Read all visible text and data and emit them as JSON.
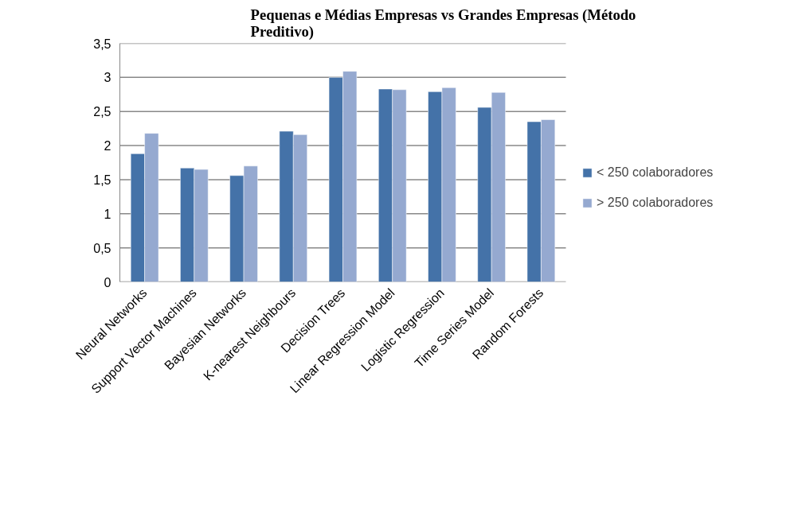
{
  "chart_data": {
    "type": "bar",
    "title": "Pequenas e Médias Empresas vs Grandes Empresas (Método Preditivo)",
    "categories": [
      "Neural Networks",
      "Support Vector Machines",
      "Bayesian Networks",
      "K-nearest Neighbours",
      "Decision Trees",
      "Linear Regression Model",
      "Logistic Regression",
      "Time Series Model",
      "Random Forests"
    ],
    "series": [
      {
        "name": "< 250 colaboradores",
        "color": "#4472a8",
        "values": [
          1.88,
          1.67,
          1.56,
          2.21,
          3.0,
          2.83,
          2.79,
          2.56,
          2.35
        ]
      },
      {
        "name": "> 250 colaboradores",
        "color": "#95a9d0",
        "values": [
          2.18,
          1.65,
          1.7,
          2.16,
          3.09,
          2.82,
          2.85,
          2.78,
          2.38
        ]
      }
    ],
    "ylim": [
      0,
      3.5
    ],
    "yticks": [
      0,
      {
        "value": 0.5,
        "label": "0,5"
      },
      1,
      {
        "value": 1.5,
        "label": "1,5"
      },
      2,
      {
        "value": 2.5,
        "label": "2,5"
      },
      3,
      {
        "value": 3.5,
        "label": "3,5"
      }
    ],
    "grid": "y",
    "legend": "right"
  }
}
